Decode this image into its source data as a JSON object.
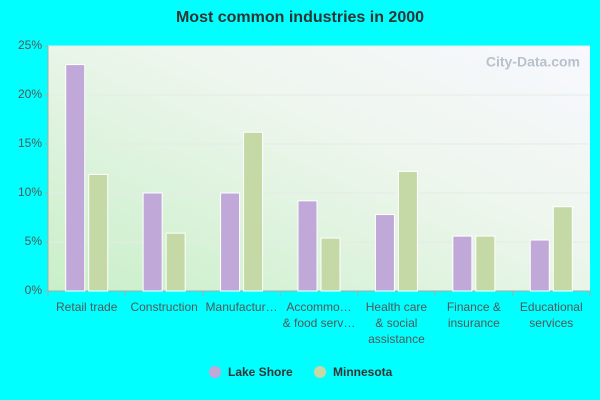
{
  "chart_data": {
    "type": "bar",
    "title": "Most common industries in 2000",
    "watermark": "City-Data.com",
    "categories": [
      "Retail trade",
      "Construction",
      "Manufactur…",
      "Accommo…\n& food serv…",
      "Health care\n& social\nassistance",
      "Finance &\ninsurance",
      "Educational\nservices"
    ],
    "series": [
      {
        "name": "Lake Shore",
        "color": "#c0a8d8",
        "values": [
          23.1,
          10.0,
          10.0,
          9.2,
          7.8,
          5.6,
          5.2
        ]
      },
      {
        "name": "Minnesota",
        "color": "#c4d9a6",
        "values": [
          11.9,
          5.9,
          16.2,
          5.4,
          12.2,
          5.6,
          8.6
        ]
      }
    ],
    "ylim": [
      0,
      25
    ],
    "yticks": [
      {
        "value": 0,
        "label": "0%"
      },
      {
        "value": 5,
        "label": "5%"
      },
      {
        "value": 10,
        "label": "10%"
      },
      {
        "value": 15,
        "label": "15%"
      },
      {
        "value": 20,
        "label": "20%"
      },
      {
        "value": 25,
        "label": "25%"
      }
    ],
    "grid": true
  }
}
